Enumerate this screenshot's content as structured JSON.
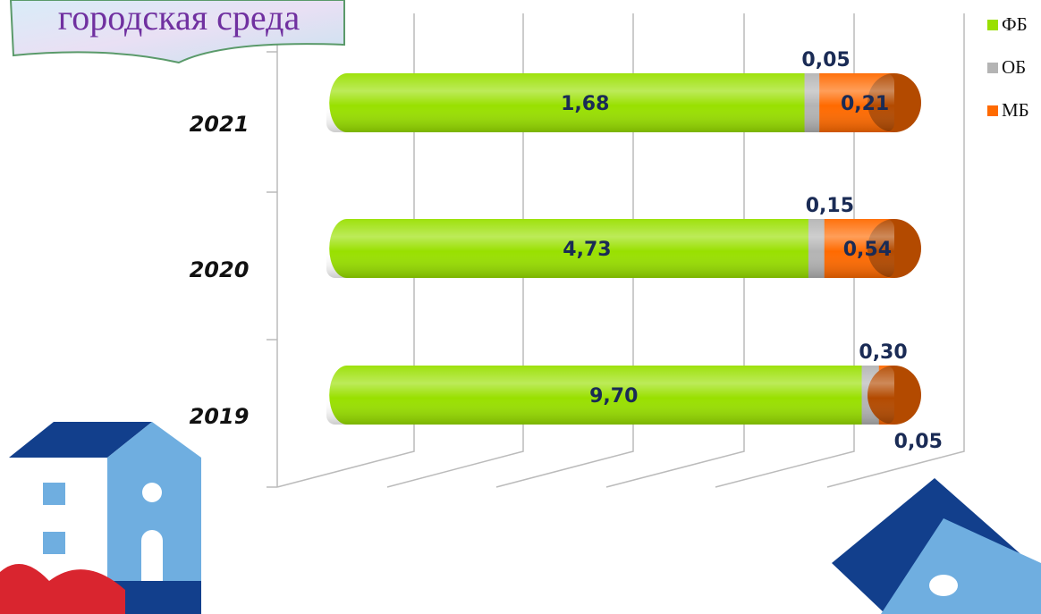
{
  "chart_data": {
    "type": "stacked-bar-100",
    "title": "городская среда",
    "categories": [
      "2021",
      "2020",
      "2019"
    ],
    "series": [
      {
        "name": "ФБ",
        "color": "#99e000",
        "values": [
          1.68,
          4.73,
          9.7
        ],
        "value_labels": [
          "1,68",
          "4,73",
          "9,70"
        ]
      },
      {
        "name": "ОБ",
        "color": "#b4b4b4",
        "values": [
          0.05,
          0.15,
          0.3
        ],
        "value_labels": [
          "0,05",
          "0,15",
          "0,30"
        ]
      },
      {
        "name": "МБ",
        "color": "#ff6a00",
        "values": [
          0.21,
          0.54,
          0.05
        ],
        "value_labels": [
          "0,21",
          "0,54",
          "0,05"
        ]
      }
    ],
    "grid": true,
    "legend": "top-right"
  }
}
